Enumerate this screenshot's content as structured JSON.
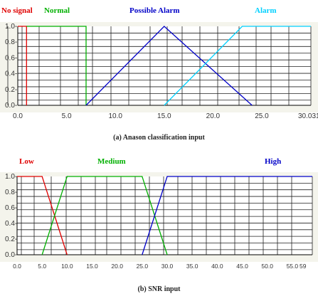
{
  "chart_data": [
    {
      "type": "line",
      "subtitle": "(a) Anason classification input",
      "series": [
        {
          "name": "No signal",
          "color": "#e00000",
          "points": [
            [
              0,
              1
            ],
            [
              0.9,
              1
            ],
            [
              0.9,
              0
            ]
          ]
        },
        {
          "name": "Normal",
          "color": "#00b000",
          "points": [
            [
              0.9,
              1
            ],
            [
              7,
              1
            ],
            [
              7,
              0
            ]
          ]
        },
        {
          "name": "Possible Alarm",
          "color": "#0000c8",
          "points": [
            [
              7,
              0
            ],
            [
              15,
              1
            ],
            [
              24,
              0
            ]
          ]
        },
        {
          "name": "Alarm",
          "color": "#00d0ff",
          "points": [
            [
              15,
              0
            ],
            [
              23,
              1
            ],
            [
              30.031,
              1
            ]
          ]
        }
      ],
      "xlim": [
        0,
        30.031
      ],
      "ylim": [
        0,
        1
      ],
      "x_tick_labels": [
        "0.0",
        "5.0",
        "10.0",
        "15.0",
        "20.0",
        "25.0",
        "30.031"
      ],
      "x_tick_values": [
        0,
        5,
        10,
        15,
        20,
        25,
        30.031
      ],
      "y_tick_labels": [
        "0.0",
        "0.2",
        "0.4",
        "0.6",
        "0.8",
        "1.0"
      ],
      "y_tick_values": [
        0,
        0.2,
        0.4,
        0.6,
        0.8,
        1.0
      ],
      "grid": true
    },
    {
      "type": "line",
      "subtitle": "(b) SNR input",
      "series": [
        {
          "name": "Low",
          "color": "#e00000",
          "points": [
            [
              0,
              1
            ],
            [
              5,
              1
            ],
            [
              10,
              0
            ]
          ]
        },
        {
          "name": "Medium",
          "color": "#00b000",
          "points": [
            [
              5,
              0
            ],
            [
              10,
              1
            ],
            [
              25,
              1
            ],
            [
              30,
              0
            ]
          ]
        },
        {
          "name": "High",
          "color": "#0000c8",
          "points": [
            [
              25,
              0
            ],
            [
              30,
              1
            ],
            [
              59,
              1
            ]
          ]
        }
      ],
      "xlim": [
        0,
        59
      ],
      "ylim": [
        0,
        1
      ],
      "x_tick_labels": [
        "0.0",
        "5.0",
        "10.0",
        "15.0",
        "20.0",
        "25.0",
        "30.0",
        "35.0",
        "40.0",
        "45.0",
        "50.0",
        "55.0",
        "59"
      ],
      "x_tick_values": [
        0,
        5,
        10,
        15,
        20,
        25,
        30,
        35,
        40,
        45,
        50,
        55,
        59
      ],
      "y_tick_labels": [
        "0.0",
        "0.2",
        "0.4",
        "0.6",
        "0.8",
        "1.0"
      ],
      "y_tick_values": [
        0,
        0.2,
        0.4,
        0.6,
        0.8,
        1.0
      ],
      "grid": true
    }
  ]
}
